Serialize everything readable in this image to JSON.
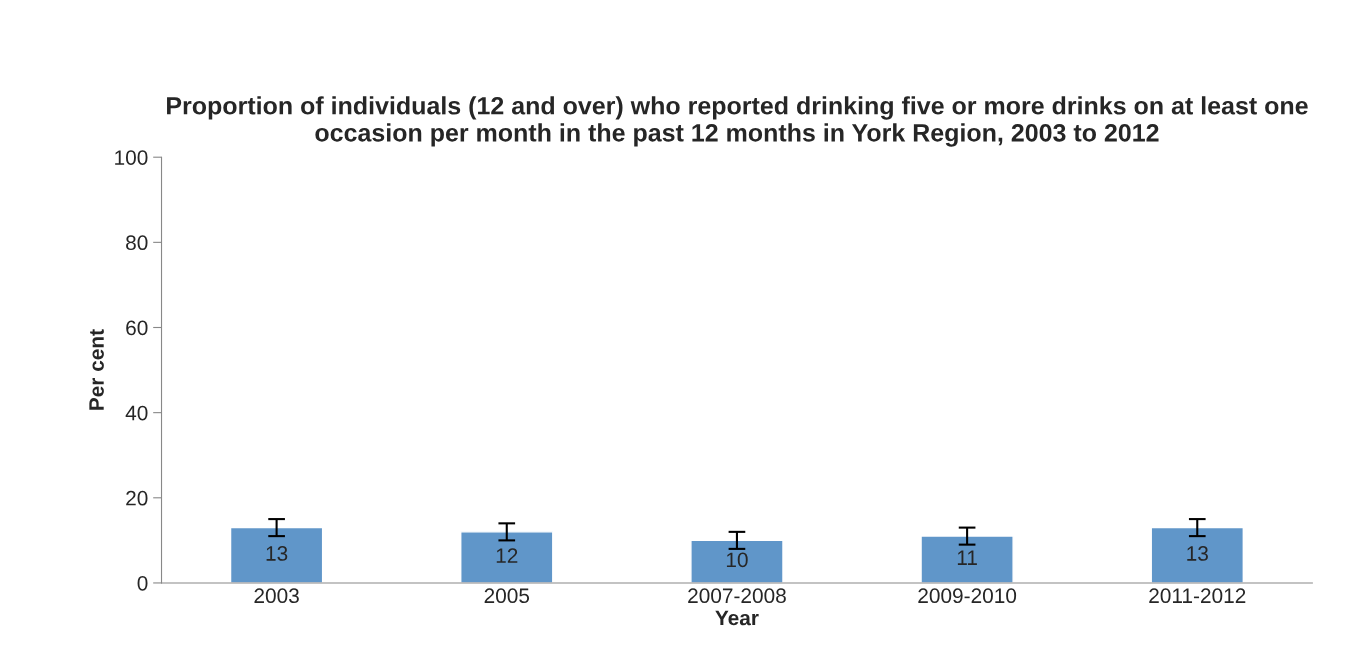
{
  "chart_data": {
    "type": "bar",
    "title": "Proportion of individuals (12 and over) who reported drinking five or more drinks on at least one occasion per month in the past 12 months in York Region, 2003 to 2012",
    "xlabel": "Year",
    "ylabel": "Per cent",
    "categories": [
      "2003",
      "2005",
      "2007-2008",
      "2009-2010",
      "2011-2012"
    ],
    "values": [
      13,
      12,
      10,
      11,
      13
    ],
    "errors": [
      2,
      2,
      2,
      2,
      2
    ],
    "color": "#6096c9",
    "ylim": [
      0,
      100
    ],
    "yticks": [
      0,
      20,
      40,
      60,
      80,
      100
    ],
    "data_labels": true,
    "grid": false,
    "legend": false
  }
}
